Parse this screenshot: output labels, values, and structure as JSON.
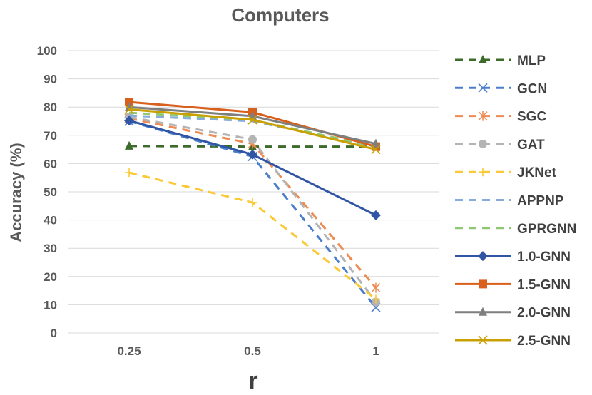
{
  "chart_data": {
    "type": "line",
    "title": "Computers",
    "xlabel": "r",
    "ylabel": "Accuracy (%)",
    "categories": [
      "0.25",
      "0.5",
      "1"
    ],
    "ylim": [
      0,
      100
    ],
    "yticks": [
      "0",
      "10",
      "20",
      "30",
      "40",
      "50",
      "60",
      "70",
      "80",
      "90",
      "100"
    ],
    "grid": true,
    "legend_position": "right",
    "series": [
      {
        "name": "MLP",
        "values": [
          66.2,
          66.0,
          66.0
        ],
        "color": "#3d6b2a",
        "dash": true,
        "marker": "triangle"
      },
      {
        "name": "GCN",
        "values": [
          75.0,
          62.5,
          9.0
        ],
        "color": "#4a7ecb",
        "dash": true,
        "marker": "x"
      },
      {
        "name": "SGC",
        "values": [
          76.0,
          67.0,
          16.0
        ],
        "color": "#ee8b52",
        "dash": true,
        "marker": "asterisk"
      },
      {
        "name": "GAT",
        "values": [
          76.5,
          68.5,
          11.0
        ],
        "color": "#b4b4b4",
        "dash": true,
        "marker": "circle"
      },
      {
        "name": "JKNet",
        "values": [
          56.8,
          46.2,
          12.0
        ],
        "color": "#fcc936",
        "dash": true,
        "marker": "plus"
      },
      {
        "name": "APPNP",
        "values": [
          77.0,
          75.0,
          66.0
        ],
        "color": "#86abdc",
        "dash": true,
        "marker": "none"
      },
      {
        "name": "GPRGNN",
        "values": [
          78.0,
          75.5,
          66.0
        ],
        "color": "#8fc874",
        "dash": true,
        "marker": "none"
      },
      {
        "name": "1.0-GNN",
        "values": [
          75.2,
          63.2,
          41.7
        ],
        "color": "#2f55a4",
        "dash": false,
        "marker": "diamond"
      },
      {
        "name": "1.5-GNN",
        "values": [
          81.8,
          78.2,
          66.0
        ],
        "color": "#d95f1c",
        "dash": false,
        "marker": "square"
      },
      {
        "name": "2.0-GNN",
        "values": [
          80.0,
          76.8,
          67.0
        ],
        "color": "#7f7f7f",
        "dash": false,
        "marker": "triangle"
      },
      {
        "name": "2.5-GNN",
        "values": [
          79.2,
          75.5,
          65.0
        ],
        "color": "#c9a000",
        "dash": false,
        "marker": "x"
      }
    ]
  }
}
